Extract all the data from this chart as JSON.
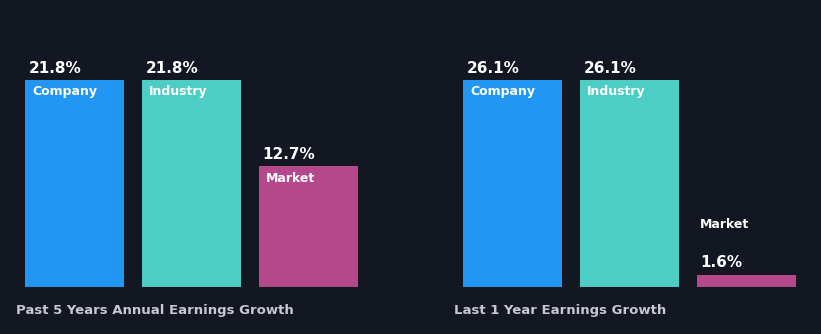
{
  "background_color": "#131722",
  "chart1": {
    "title": "Past 5 Years Annual Earnings Growth",
    "bars": [
      {
        "label": "Company",
        "value": 21.8,
        "color": "#2196f3"
      },
      {
        "label": "Industry",
        "value": 21.8,
        "color": "#4ecdc4"
      },
      {
        "label": "Market",
        "value": 12.7,
        "color": "#b5488a"
      }
    ]
  },
  "chart2": {
    "title": "Last 1 Year Earnings Growth",
    "bars": [
      {
        "label": "Company",
        "value": 26.1,
        "color": "#2196f3"
      },
      {
        "label": "Industry",
        "value": 26.1,
        "color": "#4ecdc4"
      },
      {
        "label": "Market",
        "value": 1.6,
        "color": "#b5488a"
      }
    ]
  },
  "label_fontsize": 9,
  "value_fontsize": 11,
  "title_fontsize": 9.5,
  "bar_width": 0.85,
  "text_color": "#ffffff",
  "title_color": "#c8c8d4"
}
